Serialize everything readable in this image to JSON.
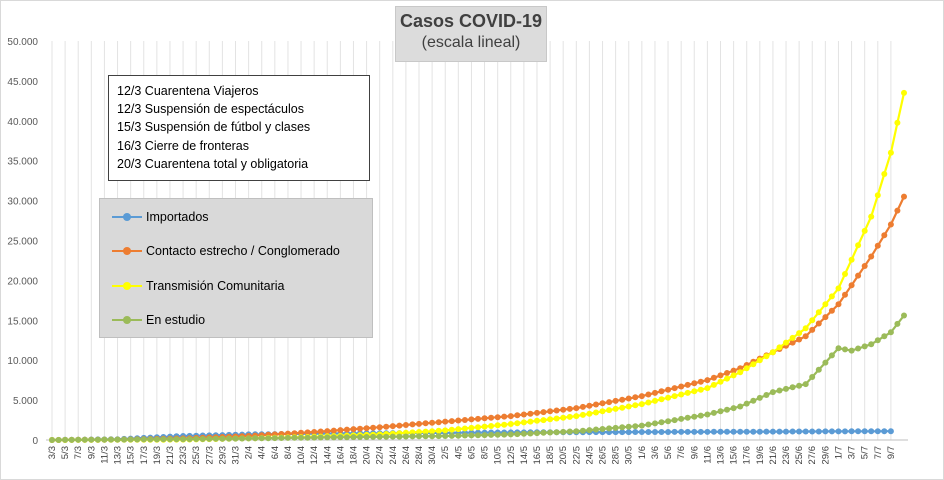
{
  "chart_data": {
    "type": "line",
    "title": "Casos  COVID-19",
    "subtitle": "(escala lineal)",
    "xlabel": "",
    "ylabel": "",
    "ylim": [
      0,
      50000
    ],
    "y_ticks": [
      "0",
      "5.000",
      "10.000",
      "15.000",
      "20.000",
      "25.000",
      "30.000",
      "35.000",
      "40.000",
      "45.000",
      "50.000"
    ],
    "grid": "vertical",
    "legend_position": "upper-left",
    "x_tick_labels": [
      "3/3",
      "5/3",
      "7/3",
      "9/3",
      "11/3",
      "13/3",
      "15/3",
      "17/3",
      "19/3",
      "21/3",
      "23/3",
      "25/3",
      "27/3",
      "29/3",
      "31/3",
      "2/4",
      "4/4",
      "6/4",
      "8/4",
      "10/4",
      "12/4",
      "14/4",
      "16/4",
      "18/4",
      "20/4",
      "22/4",
      "24/4",
      "26/4",
      "28/4",
      "30/4",
      "2/5",
      "4/5",
      "6/5",
      "8/5",
      "10/5",
      "12/5",
      "14/5",
      "16/5",
      "18/5",
      "20/5",
      "22/5",
      "24/5",
      "26/5",
      "28/5",
      "30/5",
      "1/6",
      "3/6",
      "5/6",
      "7/6",
      "9/6",
      "11/6",
      "13/6",
      "15/6",
      "17/6",
      "19/6",
      "21/6",
      "23/6",
      "25/6",
      "27/6",
      "29/6",
      "1/7",
      "3/7",
      "5/7",
      "7/7",
      "9/7"
    ],
    "annotations": [
      "12/3 Cuarentena Viajeros",
      "12/3 Suspensión de espectáculos",
      "15/3 Suspensión de fútbol y clases",
      "16/3 Cierre de fronteras",
      "20/3 Cuarentena total y obligatoria"
    ],
    "series": [
      {
        "name": "Importados",
        "color": "#5b9bd5",
        "points": [
          [
            0,
            0
          ],
          [
            10,
            100
          ],
          [
            20,
            500
          ],
          [
            30,
            700
          ],
          [
            40,
            800
          ],
          [
            50,
            850
          ],
          [
            60,
            900
          ],
          [
            70,
            950
          ],
          [
            80,
            980
          ],
          [
            90,
            1000
          ],
          [
            100,
            1020
          ],
          [
            110,
            1050
          ],
          [
            120,
            1080
          ],
          [
            128,
            1100
          ]
        ]
      },
      {
        "name": "Contacto estrecho / Conglomerado",
        "color": "#ed7d31",
        "points": [
          [
            0,
            0
          ],
          [
            10,
            50
          ],
          [
            20,
            200
          ],
          [
            30,
            500
          ],
          [
            40,
            1000
          ],
          [
            50,
            1600
          ],
          [
            60,
            2300
          ],
          [
            70,
            3000
          ],
          [
            80,
            4000
          ],
          [
            90,
            5500
          ],
          [
            100,
            7500
          ],
          [
            105,
            9000
          ],
          [
            110,
            11000
          ],
          [
            115,
            13000
          ],
          [
            120,
            17000
          ],
          [
            125,
            23000
          ],
          [
            128,
            27000
          ],
          [
            130,
            30500
          ]
        ]
      },
      {
        "name": "Transmisión Comunitaria",
        "color": "#ffff00",
        "points": [
          [
            0,
            0
          ],
          [
            20,
            50
          ],
          [
            30,
            200
          ],
          [
            40,
            400
          ],
          [
            50,
            700
          ],
          [
            60,
            1200
          ],
          [
            70,
            2000
          ],
          [
            80,
            3000
          ],
          [
            90,
            4500
          ],
          [
            100,
            6500
          ],
          [
            105,
            8500
          ],
          [
            110,
            11000
          ],
          [
            115,
            14000
          ],
          [
            120,
            19000
          ],
          [
            125,
            28000
          ],
          [
            128,
            36000
          ],
          [
            130,
            43500
          ]
        ]
      },
      {
        "name": "En estudio",
        "color": "#9bbb59",
        "points": [
          [
            0,
            0
          ],
          [
            20,
            100
          ],
          [
            30,
            200
          ],
          [
            40,
            300
          ],
          [
            50,
            400
          ],
          [
            60,
            500
          ],
          [
            70,
            700
          ],
          [
            80,
            1100
          ],
          [
            90,
            1800
          ],
          [
            100,
            3200
          ],
          [
            105,
            4200
          ],
          [
            110,
            6000
          ],
          [
            115,
            7000
          ],
          [
            120,
            11500
          ],
          [
            122,
            11200
          ],
          [
            125,
            12000
          ],
          [
            128,
            13500
          ],
          [
            130,
            15600
          ]
        ]
      }
    ]
  }
}
